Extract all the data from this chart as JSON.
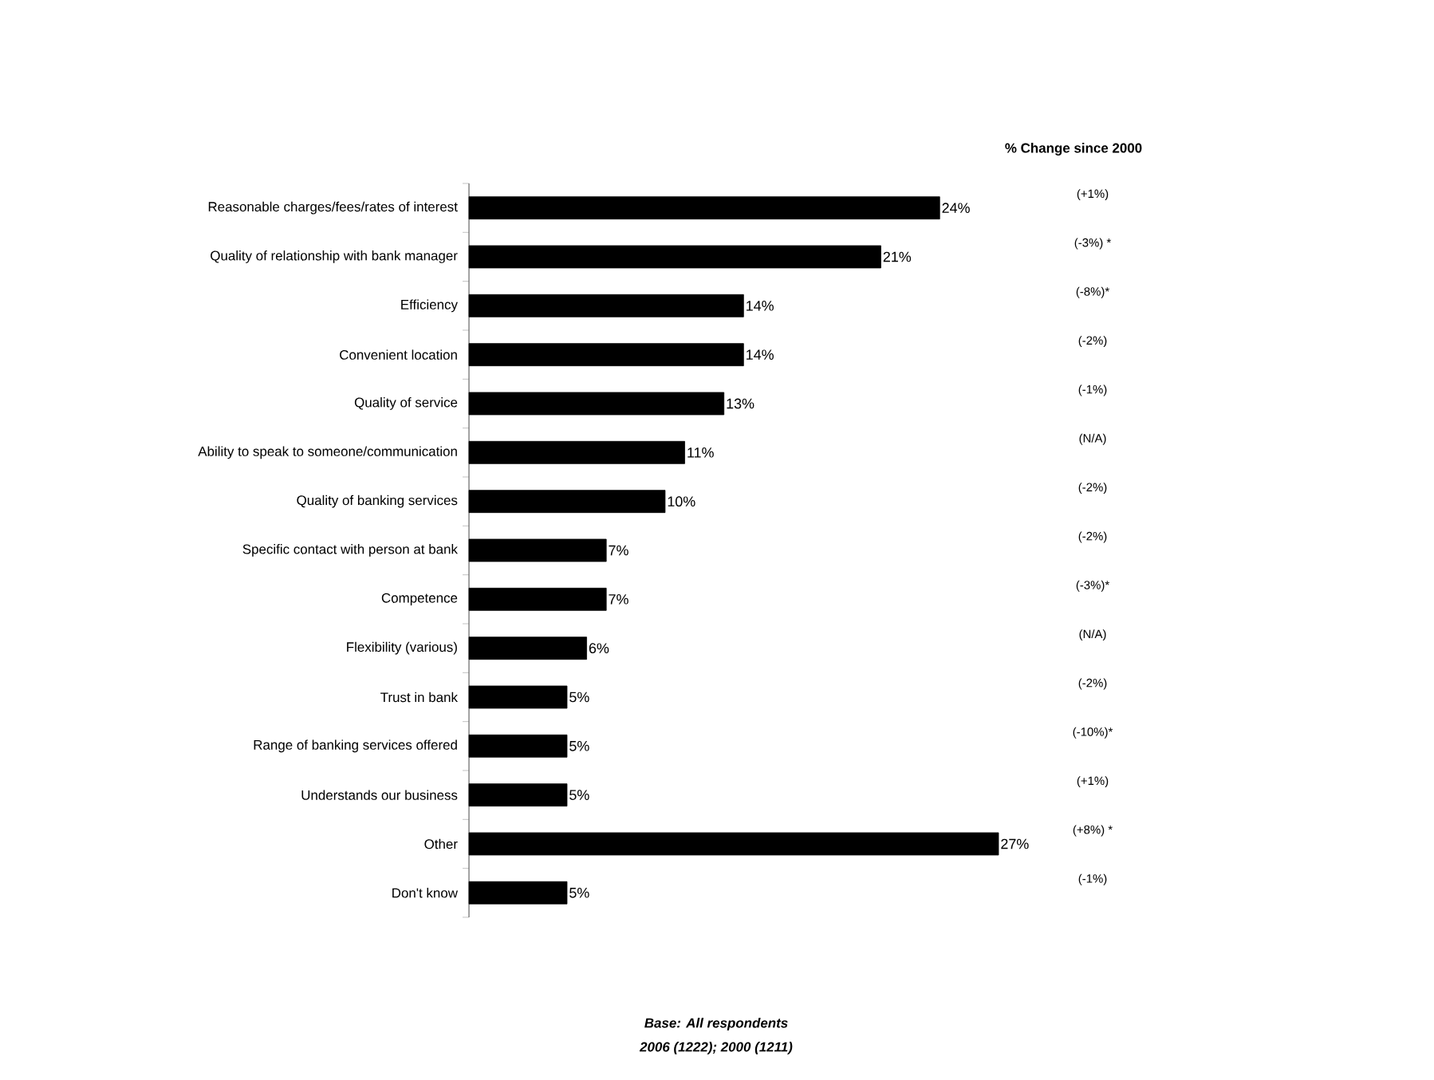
{
  "chart_data": {
    "type": "bar",
    "orientation": "horizontal",
    "color": "#000000",
    "data_labels": true,
    "categories": [
      "Reasonable charges/fees/rates of interest",
      "Quality of relationship with bank manager",
      "Efficiency",
      "Convenient location",
      "Quality of service",
      "Ability to speak to someone/communication",
      "Quality of banking services",
      "Specific contact with person at bank",
      "Competence",
      "Flexibility (various)",
      "Trust in bank",
      "Range of banking services offered",
      "Understands our business",
      "Other",
      "Don't know"
    ],
    "values": [
      24,
      21,
      14,
      14,
      13,
      11,
      10,
      7,
      7,
      6,
      5,
      5,
      5,
      27,
      5
    ],
    "value_labels": [
      "24%",
      "21%",
      "14%",
      "14%",
      "13%",
      "11%",
      "10%",
      "7%",
      "7%",
      "6%",
      "5%",
      "5%",
      "5%",
      "27%",
      "5%"
    ],
    "annotations": [
      "% Change since 2000",
      "(+1%)",
      "(-3%) *",
      "(-8%)*",
      "(-2%)",
      "(-1%)",
      "(N/A)",
      "(-2%)",
      "(-2%)",
      "(-3%)*",
      "(N/A)",
      "(-2%)",
      "(-10%)*",
      "(+1%)",
      "(+8%) *",
      "(-1%)",
      "Base: All respondents",
      "2006 (1222); 2000 (1211)"
    ]
  }
}
